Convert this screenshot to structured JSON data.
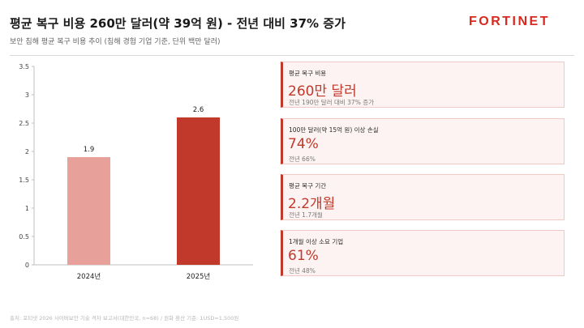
{
  "header": {
    "title": "평균 복구 비용 260만 달러(약 39억 원) - 전년 대비 37% 증가",
    "subtitle": "보안 침해 평균 복구 비용 추이 (침해 경험 기업 기준, 단위 백만 달러)"
  },
  "logo": {
    "text": "FORTINET",
    "color": "#d7291f"
  },
  "chart_data": {
    "type": "bar",
    "categories": [
      "2024년",
      "2025년"
    ],
    "values": [
      1.9,
      2.6
    ],
    "value_labels": [
      "1.9",
      "2.6"
    ],
    "bar_colors": [
      "#e8a19a",
      "#c0392b"
    ],
    "title": "",
    "xlabel": "",
    "ylabel": "",
    "ylim": [
      0,
      3.5
    ],
    "yticks": [
      "0",
      "0.5",
      "1",
      "1.5",
      "2",
      "2.5",
      "3",
      "3.5"
    ],
    "grid": false,
    "legend": "none"
  },
  "cards": [
    {
      "label": "평균 복구 비용",
      "value": "260만 달러",
      "sub": "전년 190만 달러 대비 37% 증가"
    },
    {
      "label": "100만 달러(약 15억 원) 이상 손실",
      "value": "74%",
      "sub": "전년 66%"
    },
    {
      "label": "평균 복구 기간",
      "value": "2.2개월",
      "sub": "전년 1.7개월"
    },
    {
      "label": "1개월 이상 소요 기업",
      "value": "61%",
      "sub": "전년 48%"
    }
  ],
  "footer": {
    "source": "출처: 포티넷 2026 사이버보안 기술 격차 보고서(대한민국, n=68) / 원화 환산 기준: 1USD=1,500원"
  }
}
